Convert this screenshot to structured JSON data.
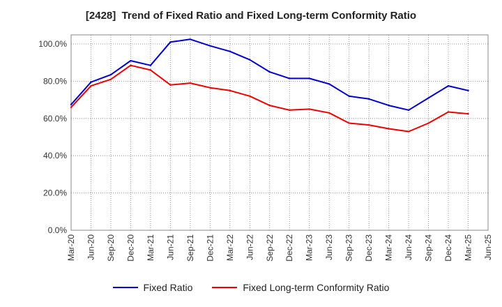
{
  "chart_data": {
    "type": "line",
    "title": "[2428]  Trend of Fixed Ratio and Fixed Long-term Conformity Ratio",
    "xlabel": "",
    "ylabel": "",
    "ylim": [
      0,
      100
    ],
    "y_ticks": [
      "0.0%",
      "20.0%",
      "40.0%",
      "60.0%",
      "80.0%",
      "100.0%"
    ],
    "x_tick_labels": [
      "Mar-20",
      "Jun-20",
      "Sep-20",
      "Dec-20",
      "Mar-21",
      "Jun-21",
      "Sep-21",
      "Dec-21",
      "Mar-22",
      "Jun-22",
      "Sep-22",
      "Dec-22",
      "Mar-23",
      "Jun-23",
      "Sep-23",
      "Dec-23",
      "Mar-24",
      "Jun-24",
      "Sep-24",
      "Dec-24",
      "Mar-25",
      "Jun-25"
    ],
    "x": [
      "Mar-20",
      "Jun-20",
      "Sep-20",
      "Dec-20",
      "Mar-21",
      "Jun-21",
      "Sep-21",
      "Dec-21",
      "Mar-22",
      "Jun-22",
      "Sep-22",
      "Dec-22",
      "Mar-23",
      "Jun-23",
      "Sep-23",
      "Dec-23",
      "Mar-24",
      "Jun-24",
      "Sep-24",
      "Dec-24",
      "Mar-25"
    ],
    "grid": true,
    "legend_position": "bottom",
    "series": [
      {
        "name": "Fixed Ratio",
        "color": "#0000cc",
        "values": [
          67.5,
          79.5,
          83.5,
          91.0,
          88.5,
          101.0,
          102.5,
          99.0,
          96.0,
          91.5,
          85.0,
          81.5,
          81.5,
          78.5,
          72.0,
          70.5,
          67.0,
          64.5,
          71.0,
          77.5,
          75.0
        ]
      },
      {
        "name": "Fixed Long-term Conformity Ratio",
        "color": "#ee0000",
        "values": [
          66.0,
          77.5,
          81.0,
          88.5,
          86.0,
          78.0,
          79.0,
          76.5,
          75.0,
          72.0,
          67.0,
          64.5,
          65.0,
          63.0,
          57.5,
          56.5,
          54.5,
          53.0,
          57.5,
          63.5,
          62.5
        ]
      }
    ]
  }
}
